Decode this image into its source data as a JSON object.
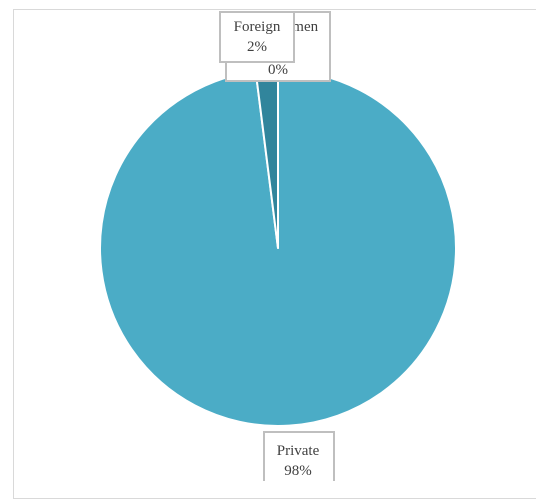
{
  "chart_data": {
    "type": "pie",
    "title": "",
    "categories": [
      "Private",
      "Foreign",
      "Women"
    ],
    "values": [
      98,
      2,
      0
    ],
    "labels": [
      {
        "name": "Private",
        "percent": "98%"
      },
      {
        "name": "Foreign",
        "percent": "2%"
      },
      {
        "name": "Women",
        "percent": "0%"
      }
    ],
    "colors": [
      "#4bacc6",
      "#31859c",
      "#4bacc6"
    ],
    "legend": "none",
    "data_labels": "outside"
  }
}
